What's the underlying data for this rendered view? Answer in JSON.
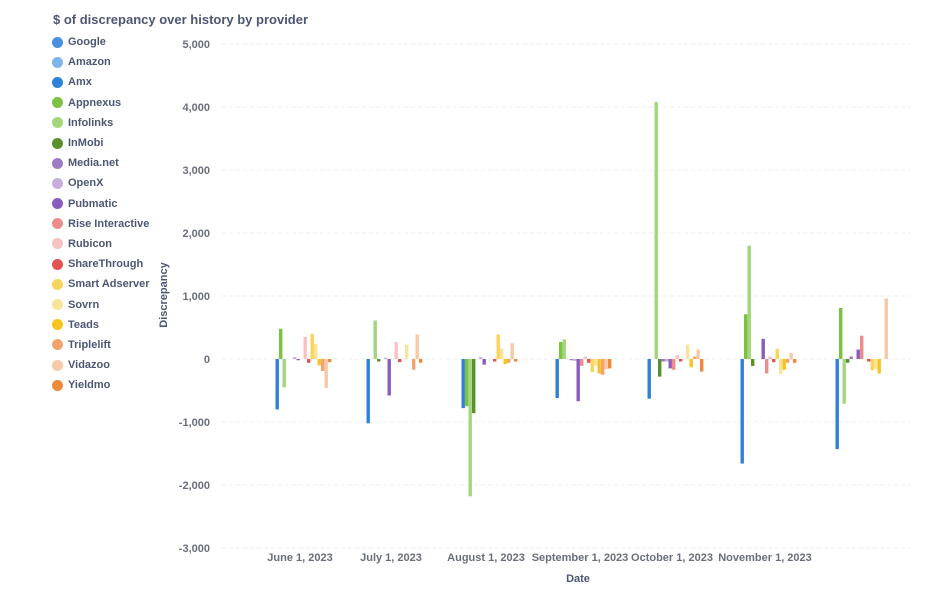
{
  "colors": {
    "Google": "#4a90e2",
    "Amazon": "#7fb4ec",
    "Amx": "#2f80d8",
    "Appnexus": "#7cc142",
    "Infolinks": "#a1d77b",
    "InMobi": "#5a8f2e",
    "Media.net": "#a07cc8",
    "OpenX": "#c7aedf",
    "Pubmatic": "#8a5cc0",
    "Rise Interactive": "#ee8c8c",
    "Rubicon": "#f6c2c2",
    "ShareThrough": "#e65353",
    "Smart Adserver": "#f9d45c",
    "Sovrn": "#fbe49a",
    "Teads": "#f7c41f",
    "Triplelift": "#f4a36c",
    "Vidazoo": "#f6c9a7",
    "Yieldmo": "#ee8a3c"
  },
  "chart_data": {
    "type": "bar",
    "title": "$ of discrepancy over history by provider",
    "xlabel": "Date",
    "ylabel": "Discrepancy",
    "ylim": [
      -3000,
      5000
    ],
    "yticks": [
      "5,000",
      "4,000",
      "3,000",
      "2,000",
      "1,000",
      "0",
      "-1,000",
      "-2,000",
      "-3,000"
    ],
    "ytick_values": [
      5000,
      4000,
      3000,
      2000,
      1000,
      0,
      -1000,
      -2000,
      -3000
    ],
    "grid": true,
    "legend_position": "left",
    "categories": [
      "June 1, 2023",
      "July 1, 2023",
      "August 1, 2023",
      "September 1, 2023",
      "October 1, 2023",
      "November 1, 2023",
      ""
    ],
    "xtick_labels": [
      "June 1, 2023",
      "July 1, 2023",
      "August 1, 2023",
      "September 1, 2023",
      "October 1, 2023",
      "November 1, 2023"
    ],
    "series": [
      {
        "name": "Google",
        "values": [
          0,
          0,
          0,
          0,
          0,
          0,
          0
        ]
      },
      {
        "name": "Amazon",
        "values": [
          0,
          0,
          0,
          0,
          0,
          0,
          0
        ]
      },
      {
        "name": "Amx",
        "values": [
          -800,
          -1020,
          -780,
          -620,
          -630,
          -1660,
          -1430
        ]
      },
      {
        "name": "Appnexus",
        "values": [
          480,
          0,
          -750,
          270,
          0,
          710,
          810
        ]
      },
      {
        "name": "Infolinks",
        "values": [
          -450,
          610,
          -2180,
          310,
          4080,
          1800,
          -710
        ]
      },
      {
        "name": "InMobi",
        "values": [
          0,
          -40,
          -860,
          0,
          -280,
          -110,
          -60
        ]
      },
      {
        "name": "Media.net",
        "values": [
          0,
          0,
          0,
          -20,
          -40,
          0,
          40
        ]
      },
      {
        "name": "OpenX",
        "values": [
          30,
          20,
          30,
          -30,
          -40,
          0,
          0
        ]
      },
      {
        "name": "Pubmatic",
        "values": [
          -20,
          -580,
          -90,
          -670,
          -150,
          320,
          150
        ]
      },
      {
        "name": "Rise Interactive",
        "values": [
          0,
          0,
          0,
          -110,
          -170,
          -230,
          370
        ]
      },
      {
        "name": "Rubicon",
        "values": [
          350,
          270,
          0,
          40,
          60,
          40,
          0
        ]
      },
      {
        "name": "ShareThrough",
        "values": [
          -60,
          -50,
          -40,
          -60,
          -40,
          -50,
          -40
        ]
      },
      {
        "name": "Smart Adserver",
        "values": [
          400,
          0,
          390,
          -210,
          0,
          160,
          -180
        ]
      },
      {
        "name": "Sovrn",
        "values": [
          240,
          230,
          160,
          -110,
          230,
          -240,
          -160
        ]
      },
      {
        "name": "Teads",
        "values": [
          -100,
          0,
          -80,
          -230,
          -130,
          -170,
          -230
        ]
      },
      {
        "name": "Triplelift",
        "values": [
          -190,
          -170,
          -60,
          -250,
          40,
          -60,
          0
        ]
      },
      {
        "name": "Vidazoo",
        "values": [
          -460,
          390,
          250,
          -160,
          150,
          100,
          960
        ]
      },
      {
        "name": "Yieldmo",
        "values": [
          -50,
          -60,
          -40,
          -150,
          -200,
          -60,
          0
        ]
      }
    ]
  }
}
